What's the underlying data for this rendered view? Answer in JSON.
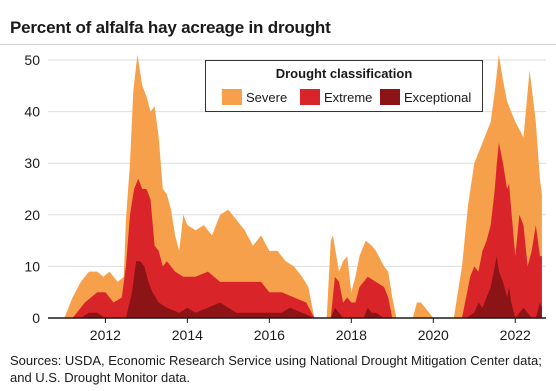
{
  "title": "Percent of alfalfa hay acreage in drought",
  "source": "Sources: USDA, Economic Research Service using National Drought Mitigation Center data; and U.S. Drought Monitor data.",
  "colors": {
    "severe": "#f7a04b",
    "extreme": "#d9252a",
    "exceptional": "#8c1417",
    "grid": "#dddddd"
  },
  "chart_data": {
    "type": "area",
    "title": "Percent of alfalfa hay acreage in drought",
    "xlabel": "",
    "ylabel": "",
    "xlim": [
      2010.6,
      2022.75
    ],
    "ylim": [
      0,
      50
    ],
    "xticks": [
      2012,
      2014,
      2016,
      2018,
      2020,
      2022
    ],
    "yticks": [
      0,
      10,
      20,
      30,
      40,
      50
    ],
    "grid": "horizontal",
    "stacked": false,
    "legend": {
      "title": "Drought classification",
      "placement": "top-center",
      "entries": [
        "Severe",
        "Extreme",
        "Exceptional"
      ]
    },
    "series": [
      {
        "name": "Severe",
        "x": [
          2011.0,
          2011.2,
          2011.4,
          2011.6,
          2011.8,
          2011.95,
          2012.1,
          2012.3,
          2012.45,
          2012.5,
          2012.6,
          2012.68,
          2012.78,
          2012.9,
          2013.0,
          2013.1,
          2013.2,
          2013.3,
          2013.4,
          2013.5,
          2013.6,
          2013.7,
          2013.8,
          2013.9,
          2014.0,
          2014.2,
          2014.4,
          2014.6,
          2014.8,
          2015.0,
          2015.2,
          2015.4,
          2015.6,
          2015.8,
          2016.0,
          2016.2,
          2016.4,
          2016.6,
          2016.8,
          2016.95,
          2017.1,
          2017.4,
          2017.5,
          2017.55,
          2017.7,
          2017.8,
          2017.9,
          2018.0,
          2018.1,
          2018.2,
          2018.35,
          2018.5,
          2018.6,
          2018.8,
          2018.9,
          2019.0,
          2019.1,
          2019.3,
          2019.5,
          2019.6,
          2019.7,
          2020.0,
          2020.05,
          2020.3,
          2020.5,
          2020.7,
          2020.85,
          2021.0,
          2021.2,
          2021.4,
          2021.5,
          2021.6,
          2021.7,
          2021.8,
          2022.0,
          2022.2,
          2022.35,
          2022.5,
          2022.6,
          2022.65
        ],
        "values": [
          0,
          4,
          7,
          9,
          9,
          8,
          9,
          7,
          8,
          19,
          30,
          44,
          51,
          45,
          43,
          40,
          41,
          35,
          25,
          24,
          21,
          16,
          13,
          20,
          18,
          17,
          18,
          16,
          20,
          21,
          19,
          17,
          14,
          16,
          13,
          13,
          11,
          10,
          8,
          6,
          0,
          0,
          15,
          16,
          9,
          11,
          12,
          5,
          8,
          12,
          15,
          14,
          13,
          10,
          9,
          4,
          0,
          0,
          0,
          3,
          3,
          0,
          0,
          0,
          0,
          10,
          22,
          30,
          34,
          38,
          44,
          51,
          46,
          42,
          38,
          35,
          48,
          38,
          27,
          24
        ]
      },
      {
        "name": "Extreme",
        "x": [
          2011.2,
          2011.5,
          2011.8,
          2012.0,
          2012.2,
          2012.4,
          2012.5,
          2012.6,
          2012.7,
          2012.8,
          2012.9,
          2013.0,
          2013.1,
          2013.2,
          2013.3,
          2013.4,
          2013.5,
          2013.7,
          2013.9,
          2014.2,
          2014.5,
          2014.8,
          2015.0,
          2015.3,
          2015.6,
          2015.8,
          2016.0,
          2016.3,
          2016.6,
          2016.9,
          2017.1,
          2017.5,
          2017.6,
          2017.7,
          2017.8,
          2017.9,
          2018.0,
          2018.1,
          2018.2,
          2018.4,
          2018.6,
          2018.8,
          2018.9,
          2019.0,
          2020.5,
          2020.7,
          2020.9,
          2021.0,
          2021.1,
          2021.2,
          2021.3,
          2021.4,
          2021.5,
          2021.55,
          2021.6,
          2021.7,
          2021.8,
          2021.85,
          2021.9,
          2022.0,
          2022.1,
          2022.2,
          2022.3,
          2022.4,
          2022.5,
          2022.6,
          2022.65
        ],
        "values": [
          0,
          3,
          5,
          5,
          3,
          4,
          10,
          20,
          25,
          27,
          25,
          25,
          23,
          14,
          13,
          10,
          11,
          9,
          8,
          8,
          9,
          7,
          7,
          7,
          7,
          7,
          5,
          5,
          4,
          3,
          0,
          0,
          8,
          7,
          3,
          4,
          3,
          3,
          6,
          8,
          7,
          6,
          4,
          0,
          0,
          0,
          8,
          10,
          9,
          13,
          15,
          18,
          25,
          30,
          34,
          30,
          25,
          26,
          21,
          12,
          20,
          18,
          10,
          13,
          18,
          12,
          12
        ]
      },
      {
        "name": "Exceptional",
        "x": [
          2011.4,
          2011.6,
          2011.8,
          2012.0,
          2012.5,
          2012.65,
          2012.75,
          2012.85,
          2012.95,
          2013.05,
          2013.15,
          2013.3,
          2013.5,
          2013.8,
          2014.0,
          2014.2,
          2014.5,
          2014.8,
          2015.0,
          2015.2,
          2015.5,
          2016.0,
          2016.3,
          2016.5,
          2016.8,
          2017.1,
          2017.5,
          2017.6,
          2017.7,
          2017.8,
          2018.0,
          2018.3,
          2018.4,
          2018.5,
          2018.6,
          2018.8,
          2020.6,
          2020.8,
          2021.0,
          2021.1,
          2021.2,
          2021.3,
          2021.4,
          2021.5,
          2021.55,
          2021.6,
          2021.7,
          2021.8,
          2021.85,
          2021.9,
          2022.0,
          2022.1,
          2022.2,
          2022.3,
          2022.4,
          2022.5,
          2022.6,
          2022.65
        ],
        "values": [
          0,
          1,
          1,
          0,
          0,
          5,
          11,
          11,
          10,
          7,
          5,
          3,
          2,
          1,
          2,
          1,
          2,
          3,
          2,
          1,
          1,
          1,
          1,
          2,
          1,
          0,
          0,
          2,
          1,
          0,
          0,
          0,
          2,
          1,
          1,
          0,
          0,
          0,
          1,
          3,
          2,
          4,
          6,
          10,
          12,
          9,
          7,
          4,
          6,
          3,
          0,
          1,
          2,
          1,
          0,
          0,
          3,
          2
        ]
      }
    ]
  }
}
